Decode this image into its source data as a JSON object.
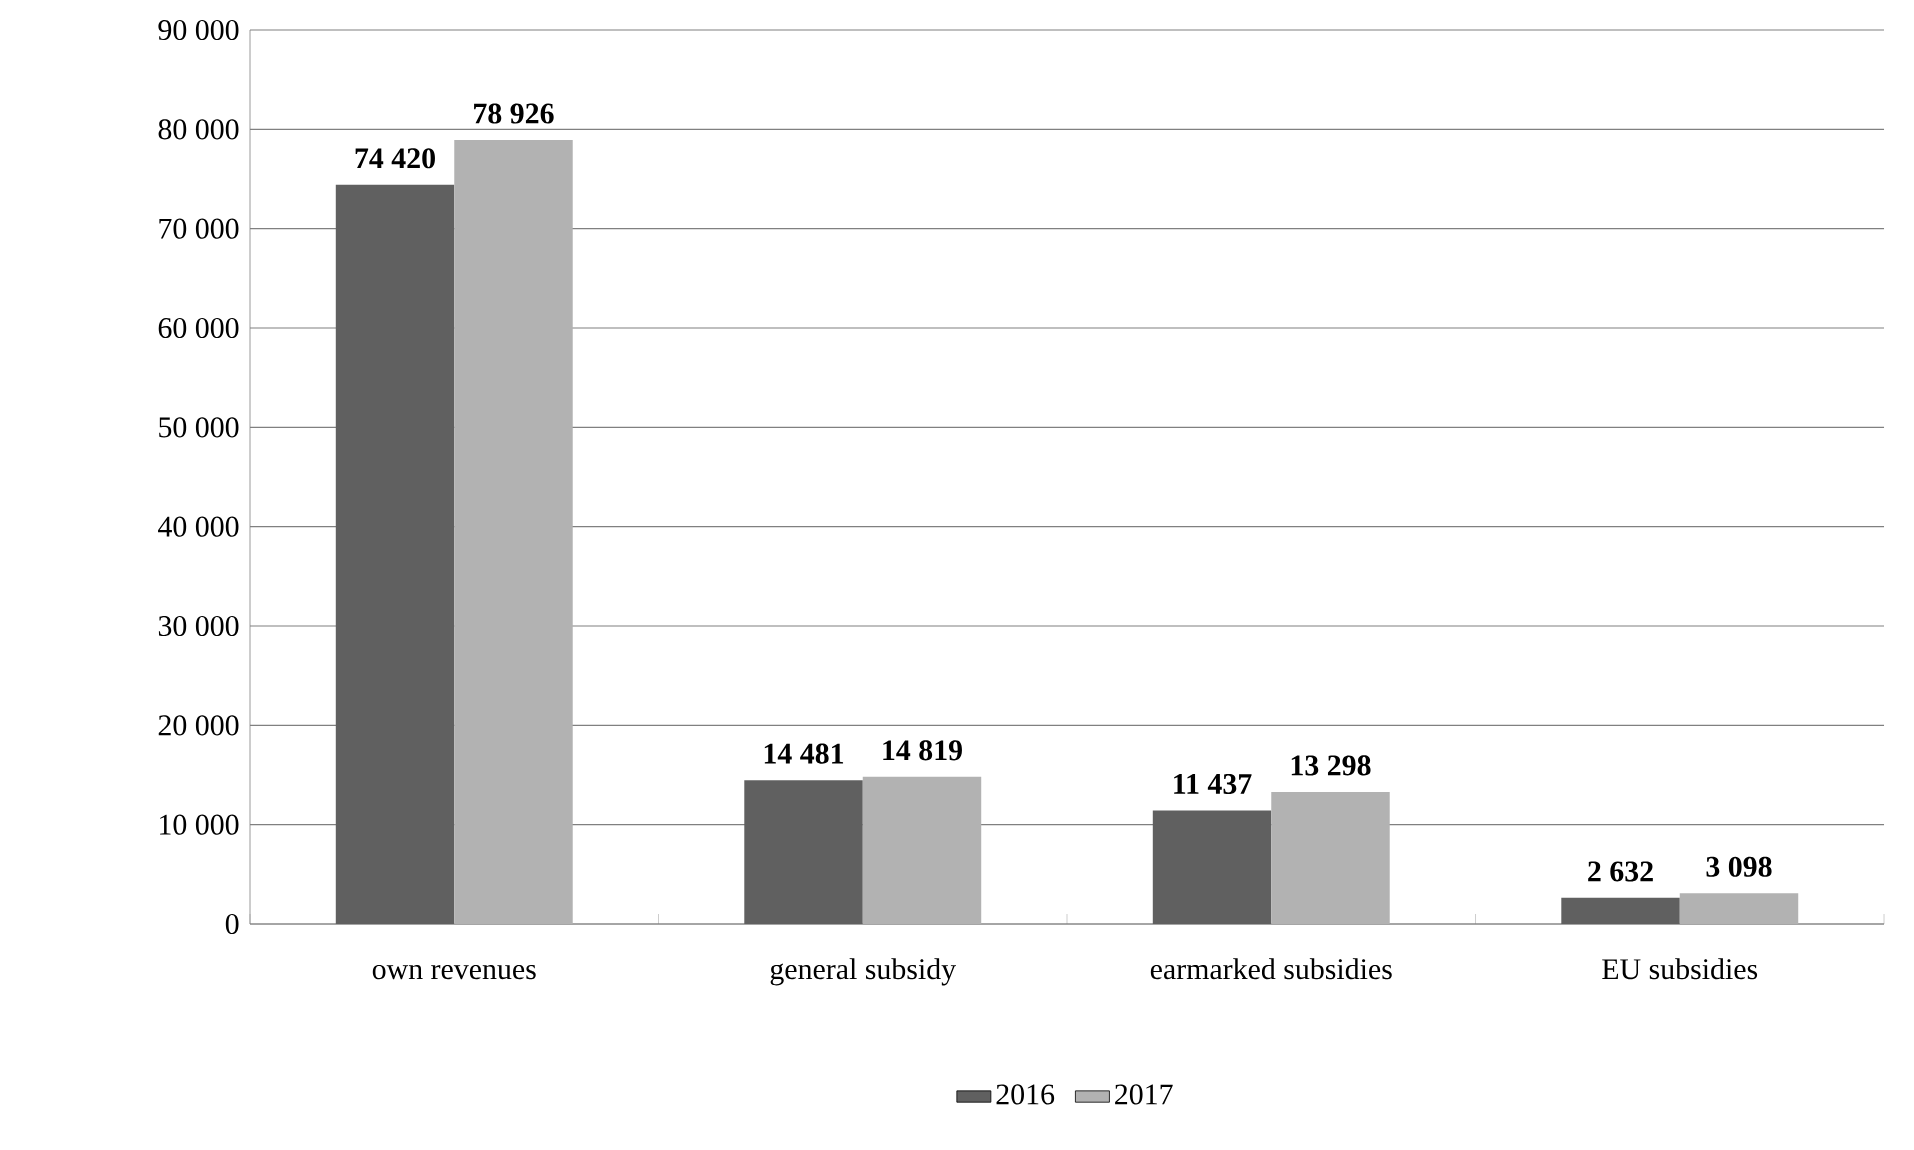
{
  "chart_data": {
    "type": "bar",
    "categories": [
      "own revenues",
      "general subsidy",
      "earmarked subsidies",
      "EU subsidies"
    ],
    "series": [
      {
        "name": "2016",
        "color": "#606060",
        "values": [
          74420,
          14481,
          11437,
          2632
        ],
        "value_labels": [
          "74 420",
          "14 481",
          "11 437",
          "2 632"
        ]
      },
      {
        "name": "2017",
        "color": "#b2b2b2",
        "values": [
          78926,
          14819,
          13298,
          3098
        ],
        "value_labels": [
          "78 926",
          "14 819",
          "13 298",
          "3 098"
        ]
      }
    ],
    "ylim": [
      0,
      90000
    ],
    "yticks": [
      0,
      {
        "value": 10000,
        "label": "10 000"
      },
      {
        "value": 20000,
        "label": "20 000"
      },
      {
        "value": 30000,
        "label": "30 000"
      },
      {
        "value": 40000,
        "label": "40 000"
      },
      {
        "value": 50000,
        "label": "50 000"
      },
      {
        "value": 60000,
        "label": "60 000"
      },
      {
        "value": 70000,
        "label": "70 000"
      },
      {
        "value": 80000,
        "label": "80 000"
      },
      {
        "value": 90000,
        "label": "90 000"
      }
    ],
    "grid": "y",
    "legend": "bottom"
  }
}
